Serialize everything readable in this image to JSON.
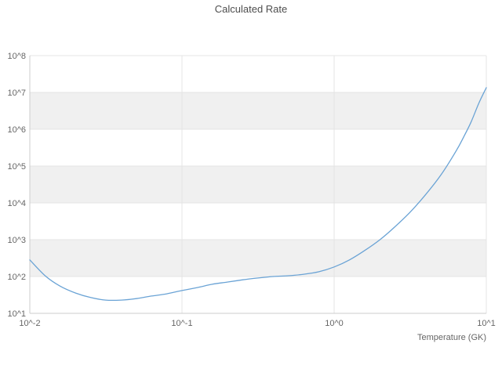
{
  "chart_data": {
    "type": "line",
    "title": "Calculated Rate",
    "xlabel": "Temperature (GK)",
    "ylabel": "",
    "xscale": "log",
    "yscale": "log",
    "xlim": [
      0.01,
      10
    ],
    "ylim": [
      10,
      100000000
    ],
    "grid": true,
    "legend": "none",
    "x_ticks": [
      {
        "value": 0.01,
        "label": "10^-2"
      },
      {
        "value": 0.1,
        "label": "10^-1"
      },
      {
        "value": 1,
        "label": "10^0"
      },
      {
        "value": 10,
        "label": "10^1"
      }
    ],
    "y_ticks": [
      {
        "value": 10,
        "label": "10^1"
      },
      {
        "value": 100,
        "label": "10^2"
      },
      {
        "value": 1000,
        "label": "10^3"
      },
      {
        "value": 10000,
        "label": "10^4"
      },
      {
        "value": 100000,
        "label": "10^5"
      },
      {
        "value": 1000000,
        "label": "10^6"
      },
      {
        "value": 10000000,
        "label": "10^7"
      },
      {
        "value": 100000000,
        "label": "10^8"
      }
    ],
    "shaded_bands": [
      [
        100,
        1000
      ],
      [
        10000,
        100000
      ],
      [
        1000000,
        10000000
      ]
    ],
    "series": [
      {
        "name": "calculated-rate",
        "x": [
          0.01,
          0.0126,
          0.0158,
          0.02,
          0.0251,
          0.0316,
          0.0398,
          0.0501,
          0.0631,
          0.0794,
          0.1,
          0.126,
          0.158,
          0.2,
          0.251,
          0.316,
          0.398,
          0.501,
          0.631,
          0.794,
          1.0,
          1.26,
          1.58,
          2.0,
          2.51,
          3.16,
          3.98,
          5.01,
          6.31,
          7.08,
          7.94,
          8.91,
          10.0
        ],
        "y": [
          282,
          105,
          55,
          35.5,
          26.9,
          22.9,
          22.9,
          25.1,
          29.5,
          33.9,
          41.7,
          50.1,
          61.7,
          70.8,
          81.3,
          91.2,
          100,
          105,
          115,
          135,
          182,
          282,
          501,
          1000,
          2240,
          5620,
          16600,
          56200,
          251000,
          603000,
          1580000,
          5010000,
          13500000
        ]
      }
    ]
  },
  "colors": {
    "line": "#6aa3d5",
    "band": "#f0f0f0",
    "grid": "#e4e4e4",
    "axis": "#cccccc",
    "title_text": "#4d4d4d",
    "tick_text": "#666666"
  }
}
